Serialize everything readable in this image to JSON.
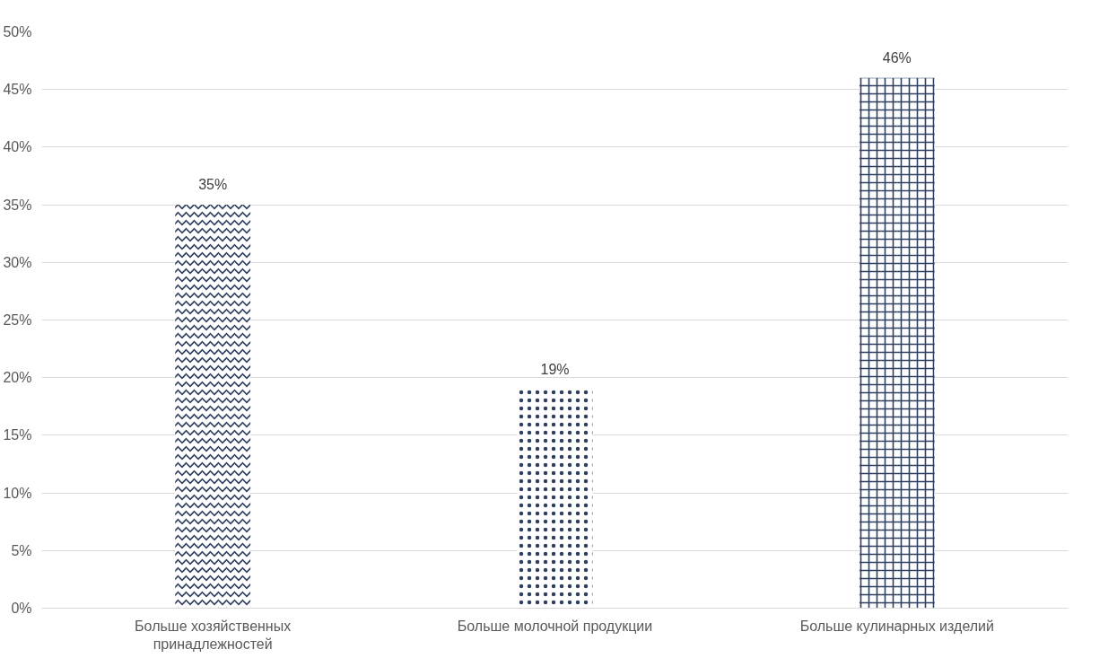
{
  "chart_data": {
    "type": "bar",
    "categories": [
      "Больше хозяйственных принадлежностей",
      "Больше молочной продукции",
      "Больше кулинарных изделий"
    ],
    "values": [
      35,
      19,
      46
    ],
    "colors": [
      "#2f3f5f",
      "#2f3f5f",
      "#2f3f5f"
    ],
    "value_labels": [
      "35%",
      "19%",
      "46%"
    ],
    "ylim": [
      0,
      50
    ],
    "yticks": [
      {
        "value": 0,
        "label": "0%"
      },
      {
        "value": 5,
        "label": "5%"
      },
      {
        "value": 10,
        "label": "10%"
      },
      {
        "value": 15,
        "label": "15%"
      },
      {
        "value": 20,
        "label": "20%"
      },
      {
        "value": 25,
        "label": "25%"
      },
      {
        "value": 30,
        "label": "30%"
      },
      {
        "value": 35,
        "label": "35%"
      },
      {
        "value": 40,
        "label": "40%"
      },
      {
        "value": 45,
        "label": "45%"
      },
      {
        "value": 50,
        "label": "50%"
      }
    ],
    "grid": "y"
  }
}
